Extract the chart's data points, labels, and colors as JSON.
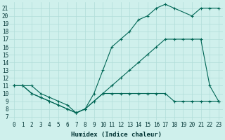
{
  "xlabel": "Humidex (Indice chaleur)",
  "bg_color": "#cff0ec",
  "grid_color": "#b0ddd8",
  "line_color": "#006655",
  "xlim": [
    -0.5,
    23.5
  ],
  "ylim": [
    6.5,
    21.8
  ],
  "yticks": [
    7,
    8,
    9,
    10,
    11,
    12,
    13,
    14,
    15,
    16,
    17,
    18,
    19,
    20,
    21
  ],
  "xticks": [
    0,
    1,
    2,
    3,
    4,
    5,
    6,
    7,
    8,
    9,
    10,
    11,
    12,
    13,
    14,
    15,
    16,
    17,
    18,
    19,
    20,
    21,
    22,
    23
  ],
  "line1_x": [
    0,
    1,
    2,
    3,
    4,
    5,
    6,
    7,
    8,
    9,
    10,
    11,
    12,
    13,
    14,
    15,
    16,
    17,
    18,
    19,
    20,
    21,
    22,
    23
  ],
  "line1_y": [
    11,
    11,
    10,
    9.5,
    9,
    8.5,
    8,
    7.5,
    8,
    9,
    10,
    11,
    12,
    13,
    14,
    15,
    16,
    17,
    17,
    17,
    17,
    17,
    11,
    9
  ],
  "line2_x": [
    0,
    1,
    2,
    3,
    4,
    5,
    6,
    7,
    8,
    9,
    10,
    11,
    12,
    13,
    14,
    15,
    16,
    17,
    18,
    20,
    21,
    22,
    23
  ],
  "line2_y": [
    11,
    11,
    10,
    9.5,
    9,
    8.5,
    8,
    7.5,
    8,
    10,
    13,
    16,
    17,
    18,
    19.5,
    20,
    21,
    21.5,
    21,
    20,
    21,
    21,
    21
  ],
  "line3_x": [
    0,
    1,
    2,
    3,
    4,
    5,
    6,
    7,
    8,
    9,
    10,
    11,
    12,
    13,
    14,
    15,
    16,
    17,
    18,
    19,
    20,
    21,
    22,
    23
  ],
  "line3_y": [
    11,
    11,
    11,
    10,
    9.5,
    9,
    8.5,
    7.5,
    8,
    9,
    10,
    10,
    10,
    10,
    10,
    10,
    10,
    10,
    9,
    9,
    9,
    9,
    9,
    9
  ]
}
